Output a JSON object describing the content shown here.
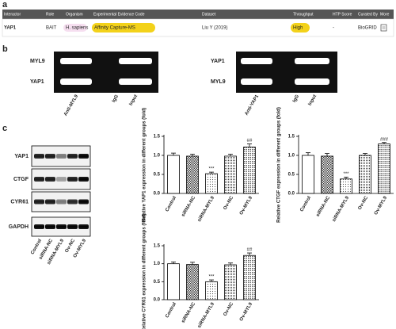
{
  "panel_labels": {
    "a": "a",
    "b": "b",
    "c": "c"
  },
  "table": {
    "headers": [
      "Interactor",
      "Role",
      "Organism",
      "Experimental Evidence Code",
      "Dataset",
      "Throughput",
      "HTP Score",
      "Curated By",
      "More"
    ],
    "rows": [
      [
        "YAP1",
        "BAIT",
        "H. sapiens",
        "Affinity Capture-MS",
        "Liu Y (2019)",
        "High",
        "-",
        "BioGRID",
        null
      ]
    ]
  },
  "blot_b": [
    {
      "bands": [
        "MYL9",
        "YAP1"
      ],
      "lanes": [
        "Anti-MYL9",
        "IgG",
        "Input"
      ]
    },
    {
      "bands": [
        "YAP1",
        "MYL9"
      ],
      "lanes": [
        "Anti-YAP1",
        "IgG",
        "Input"
      ]
    }
  ],
  "blot_c": {
    "bands": [
      "YAP1",
      "CTGF",
      "CYR61",
      "GAPDH"
    ],
    "lanes": [
      "Control",
      "siRNA-NC",
      "siRNA-MYL9",
      "Ov-NC",
      "Ov-MYL9"
    ]
  },
  "chart_data": [
    {
      "type": "bar",
      "ylabel": "Relative YAP1 expression in different groups (fold)",
      "categories": [
        "Control",
        "siRNA-NC",
        "siRNA-MYL9",
        "Ov-NC",
        "Ov-MYL9"
      ],
      "values": [
        1.0,
        0.98,
        0.52,
        0.98,
        1.22
      ],
      "errors": [
        0.06,
        0.05,
        0.04,
        0.05,
        0.08
      ],
      "annotations": [
        null,
        null,
        "***",
        null,
        "##"
      ],
      "ylim": [
        0,
        1.5
      ],
      "yticks": [
        {
          "value": 0,
          "label": "0.0"
        },
        {
          "value": 0.5,
          "label": "0.5"
        },
        {
          "value": 1,
          "label": "1.0"
        },
        {
          "value": 1.5,
          "label": "1.5"
        }
      ]
    },
    {
      "type": "bar",
      "ylabel": "Relative CTGF expression in different groups (fold)",
      "categories": [
        "Control",
        "siRNA-NC",
        "siRNA-MYL9",
        "Ov-NC",
        "Ov-MYL9"
      ],
      "values": [
        1.0,
        0.98,
        0.38,
        1.0,
        1.3
      ],
      "errors": [
        0.07,
        0.07,
        0.05,
        0.05,
        0.04
      ],
      "annotations": [
        null,
        null,
        "***",
        null,
        "###"
      ],
      "ylim": [
        0,
        1.5
      ],
      "yticks": [
        {
          "value": 0,
          "label": "0.0"
        },
        {
          "value": 0.5,
          "label": "0.5"
        },
        {
          "value": 1,
          "label": "1.0"
        },
        {
          "value": 1.5,
          "label": "1.5"
        }
      ]
    },
    {
      "type": "bar",
      "ylabel": "Relative CYR61 expression in different groups (fold)",
      "categories": [
        "Control",
        "siRNA-NC",
        "siRNA-MYL9",
        "Ov-NC",
        "Ov-MYL9"
      ],
      "values": [
        1.0,
        0.98,
        0.5,
        0.97,
        1.23
      ],
      "errors": [
        0.05,
        0.06,
        0.05,
        0.05,
        0.07
      ],
      "annotations": [
        null,
        null,
        "***",
        null,
        "##"
      ],
      "ylim": [
        0,
        1.5
      ],
      "yticks": [
        {
          "value": 0,
          "label": "0.0"
        },
        {
          "value": 0.5,
          "label": "0.5"
        },
        {
          "value": 1,
          "label": "1.0"
        },
        {
          "value": 1.5,
          "label": "1.5"
        }
      ]
    }
  ]
}
